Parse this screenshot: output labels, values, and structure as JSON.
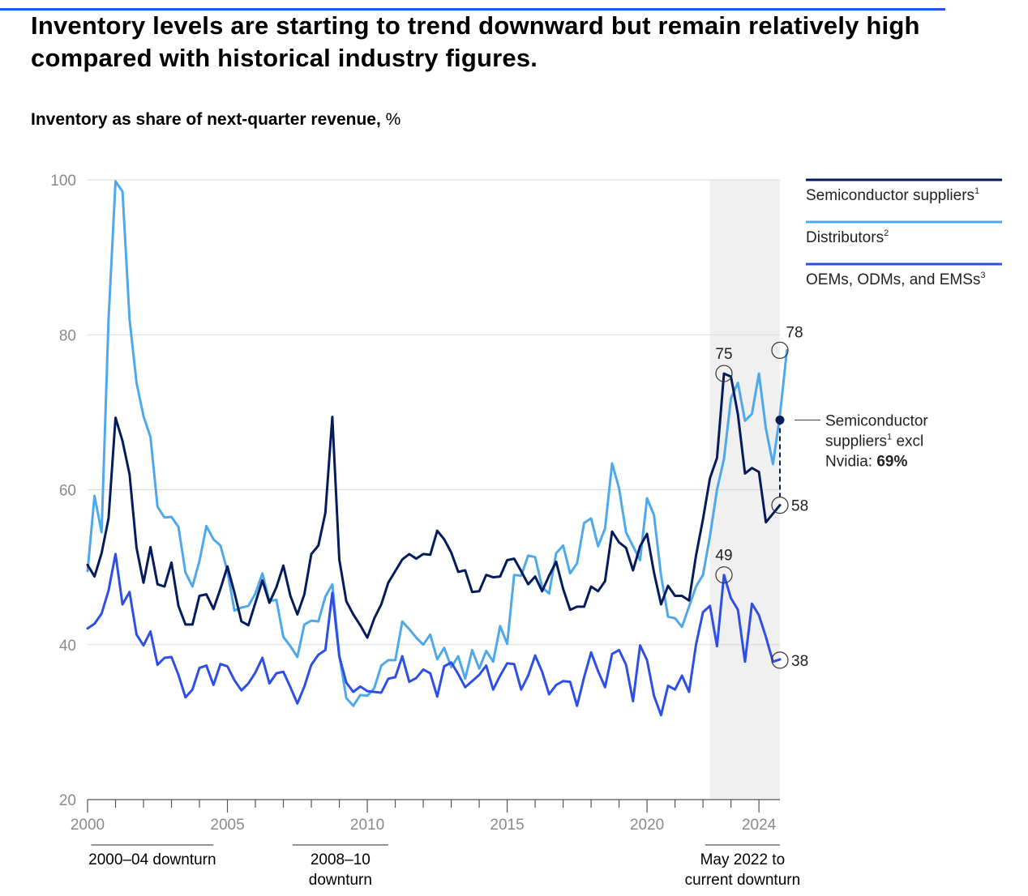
{
  "title": "Inventory levels are starting to trend downward but remain relatively high compared with historical industry figures.",
  "subtitle": "Inventory as share of next-quarter revenue,",
  "subtitle_unit": "%",
  "colors": {
    "semiconductor": "#051c5c",
    "distributors": "#4fa8ea",
    "oems": "#2e4fe6",
    "shade": "#f0f0f0",
    "grid": "#d9d9d9",
    "top_rule": "#2251ff"
  },
  "chart_data": {
    "type": "line",
    "xlabel": "",
    "ylabel": "",
    "xlim": [
      2000,
      2024.75
    ],
    "ylim": [
      20,
      100
    ],
    "yticks": [
      20,
      40,
      60,
      80,
      100
    ],
    "xticks": [
      2000,
      2005,
      2010,
      2015,
      2020,
      2024
    ],
    "grid": true,
    "legend_position": "top-right",
    "x_start": 2000,
    "x_step": 0.25,
    "shaded_period": [
      2022.25,
      2024.75
    ],
    "series": [
      {
        "name": "Semiconductor suppliers",
        "superscript": "1",
        "color": "#051c5c",
        "values": [
          50.3,
          48.8,
          51.8,
          56.3,
          69.3,
          66.3,
          62.0,
          52.5,
          48.0,
          52.6,
          47.8,
          47.5,
          50.6,
          45.0,
          42.6,
          42.6,
          46.3,
          46.5,
          44.6,
          47.2,
          50.1,
          46.7,
          43.0,
          42.5,
          45.4,
          48.3,
          45.4,
          47.4,
          50.2,
          46.3,
          43.9,
          46.5,
          51.7,
          52.8,
          57.0,
          69.4,
          51.0,
          45.6,
          43.9,
          42.5,
          40.9,
          43.4,
          45.2,
          48.0,
          49.5,
          51.0,
          51.7,
          51.1,
          51.7,
          51.6,
          54.7,
          53.6,
          51.9,
          49.4,
          49.6,
          46.8,
          46.9,
          49.0,
          48.7,
          48.8,
          50.9,
          51.1,
          49.5,
          47.8,
          48.8,
          46.9,
          48.9,
          50.7,
          47.2,
          44.5,
          44.9,
          44.9,
          47.5,
          46.9,
          48.2,
          54.6,
          53.2,
          52.5,
          49.6,
          52.7,
          54.3,
          49.3,
          45.2,
          47.6,
          46.3,
          46.3,
          45.7,
          51.5,
          56.2,
          61.5,
          64.1,
          75.0,
          74.6,
          69.7,
          62.1,
          62.8,
          62.3,
          55.8,
          56.9,
          58.0
        ]
      },
      {
        "name": "Distributors",
        "superscript": "2",
        "color": "#4fa8ea",
        "values": [
          49.5,
          59.2,
          54.5,
          82.0,
          99.8,
          98.5,
          82.0,
          73.8,
          69.5,
          66.8,
          57.8,
          56.4,
          56.5,
          55.2,
          49.3,
          47.5,
          50.8,
          55.3,
          53.6,
          52.8,
          49.5,
          44.4,
          44.8,
          45.0,
          46.6,
          49.2,
          45.6,
          45.8,
          41.0,
          39.8,
          38.4,
          42.6,
          43.1,
          43.0,
          46.2,
          47.8,
          38.6,
          33.1,
          32.1,
          33.5,
          33.4,
          34.4,
          37.3,
          38.0,
          38.0,
          43.0,
          42.0,
          40.9,
          40.0,
          41.3,
          38.1,
          39.6,
          37.1,
          38.5,
          35.6,
          39.3,
          36.9,
          39.2,
          37.8,
          42.4,
          40.1,
          49.0,
          48.9,
          51.5,
          51.3,
          47.4,
          46.6,
          51.8,
          52.8,
          49.2,
          50.5,
          55.7,
          56.3,
          52.7,
          55.0,
          63.4,
          60.2,
          54.5,
          52.7,
          50.9,
          58.9,
          56.7,
          48.9,
          43.6,
          43.4,
          42.3,
          44.9,
          47.5,
          49.0,
          54.0,
          60.0,
          64.0,
          71.8,
          73.8,
          68.9,
          69.8,
          75.0,
          67.9,
          63.3,
          69.6,
          78.0
        ]
      },
      {
        "name": "OEMs, ODMs, and EMSs",
        "superscript": "3",
        "color": "#2e4fe6",
        "values": [
          42.1,
          42.7,
          44.0,
          47.0,
          51.7,
          45.2,
          46.8,
          41.3,
          39.9,
          41.7,
          37.4,
          38.3,
          38.4,
          36.1,
          33.2,
          34.2,
          37.0,
          37.3,
          34.8,
          37.5,
          37.2,
          35.4,
          34.1,
          35.0,
          36.4,
          38.3,
          35.0,
          36.3,
          36.5,
          34.5,
          32.4,
          34.6,
          37.4,
          38.7,
          39.3,
          46.7,
          38.5,
          35.1,
          33.9,
          34.6,
          34.0,
          33.9,
          33.8,
          35.6,
          35.8,
          38.5,
          35.2,
          35.7,
          36.8,
          36.3,
          33.3,
          37.2,
          37.7,
          36.2,
          34.5,
          35.3,
          36.1,
          37.3,
          34.2,
          36.0,
          37.6,
          37.5,
          34.2,
          36.0,
          38.6,
          36.5,
          33.6,
          34.8,
          35.3,
          35.2,
          32.1,
          35.8,
          39.0,
          36.6,
          34.5,
          38.8,
          39.3,
          37.4,
          32.7,
          39.9,
          38.0,
          33.4,
          30.9,
          34.7,
          34.2,
          36.0,
          33.9,
          40.0,
          44.2,
          45.0,
          39.8,
          49.0,
          46.0,
          44.5,
          37.8,
          45.3,
          43.8,
          41.0,
          37.8,
          38.1
        ]
      }
    ],
    "annotations": [
      {
        "label": "75",
        "x": 2022.75,
        "y": 75.0,
        "series": 0,
        "label_side": "above"
      },
      {
        "label": "78",
        "x": 2024.75,
        "y": 78.0,
        "series": 1,
        "label_side": "above-right"
      },
      {
        "label": "58",
        "x": 2024.75,
        "y": 58.0,
        "series": 0,
        "label_side": "right"
      },
      {
        "label": "49",
        "x": 2022.75,
        "y": 49.0,
        "series": 2,
        "label_side": "above"
      },
      {
        "label": "38",
        "x": 2024.75,
        "y": 38.0,
        "series": 2,
        "label_side": "right"
      }
    ],
    "excl_nvidia": {
      "x": 2024.75,
      "y": 69,
      "line1": "Semiconductor",
      "line2_main": "suppliers",
      "line2_sup": "1",
      "line2_rest": " excl",
      "line3_main": "Nvidia: ",
      "line3_bold": "69%"
    },
    "periods": [
      {
        "lines": [
          "2000–04 downturn"
        ],
        "x_start": 2001,
        "x_end": 2004.5
      },
      {
        "lines": [
          "2008–10",
          "downturn"
        ],
        "x_start": 2007.5,
        "x_end": 2010.75
      },
      {
        "lines": [
          "May 2022 to",
          "current downturn"
        ],
        "x_start": 2022.25,
        "x_end": 2024.75
      }
    ]
  }
}
